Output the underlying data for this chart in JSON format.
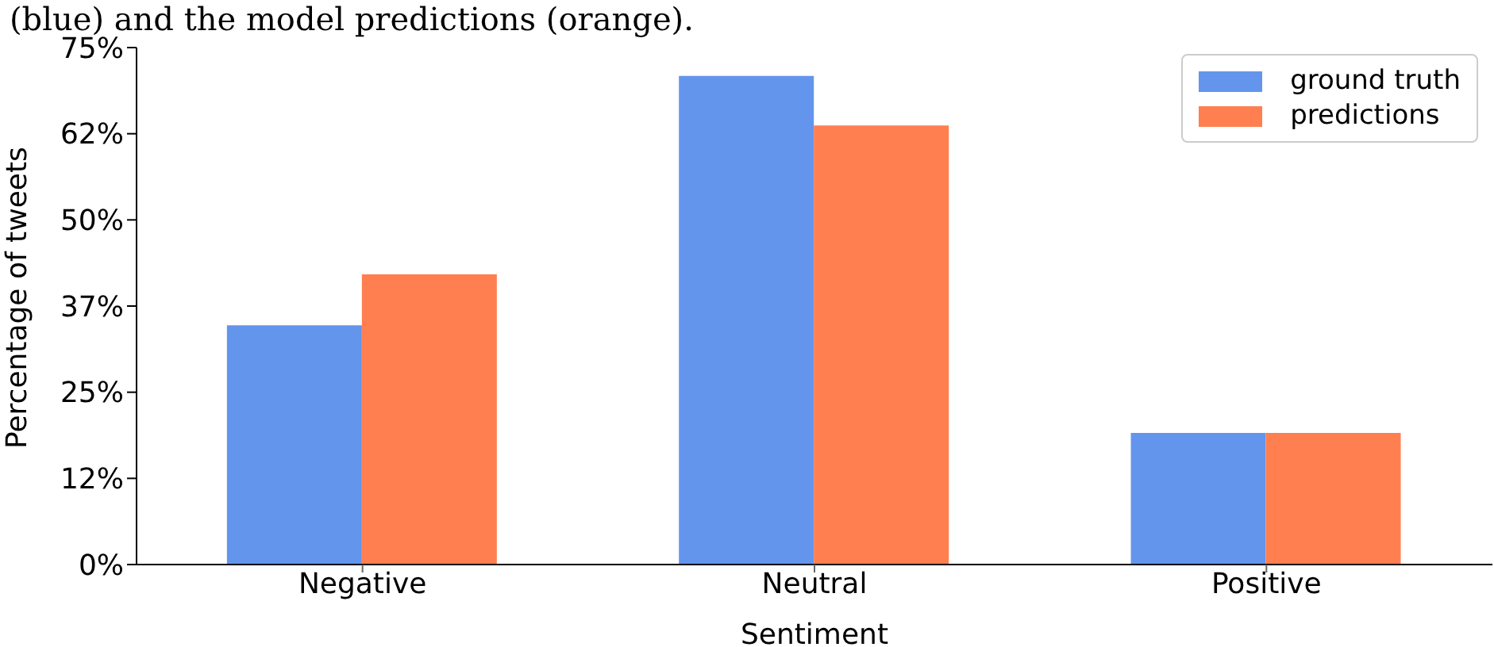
{
  "chart_data": {
    "type": "bar",
    "annotations": [
      "(blue) and the model predictions (orange)."
    ],
    "xlabel": "Sentiment",
    "ylabel": "Percentage of tweets",
    "categories": [
      "Negative",
      "Neutral",
      "Positive"
    ],
    "series": [
      {
        "name": "ground truth",
        "color": "#6495ed",
        "values": [
          34.7,
          70.9,
          19.1
        ]
      },
      {
        "name": "predictions",
        "color": "#ff7f50",
        "values": [
          42.1,
          63.7,
          19.1
        ]
      }
    ],
    "ylim": [
      0,
      75
    ],
    "yticks": [
      {
        "value": 0,
        "label": "0%"
      },
      {
        "value": 12.5,
        "label": "12%"
      },
      {
        "value": 25,
        "label": "25%"
      },
      {
        "value": 37.5,
        "label": "37%"
      },
      {
        "value": 50,
        "label": "50%"
      },
      {
        "value": 62.5,
        "label": "62%"
      },
      {
        "value": 75,
        "label": "75%"
      }
    ],
    "legend": "top right"
  }
}
